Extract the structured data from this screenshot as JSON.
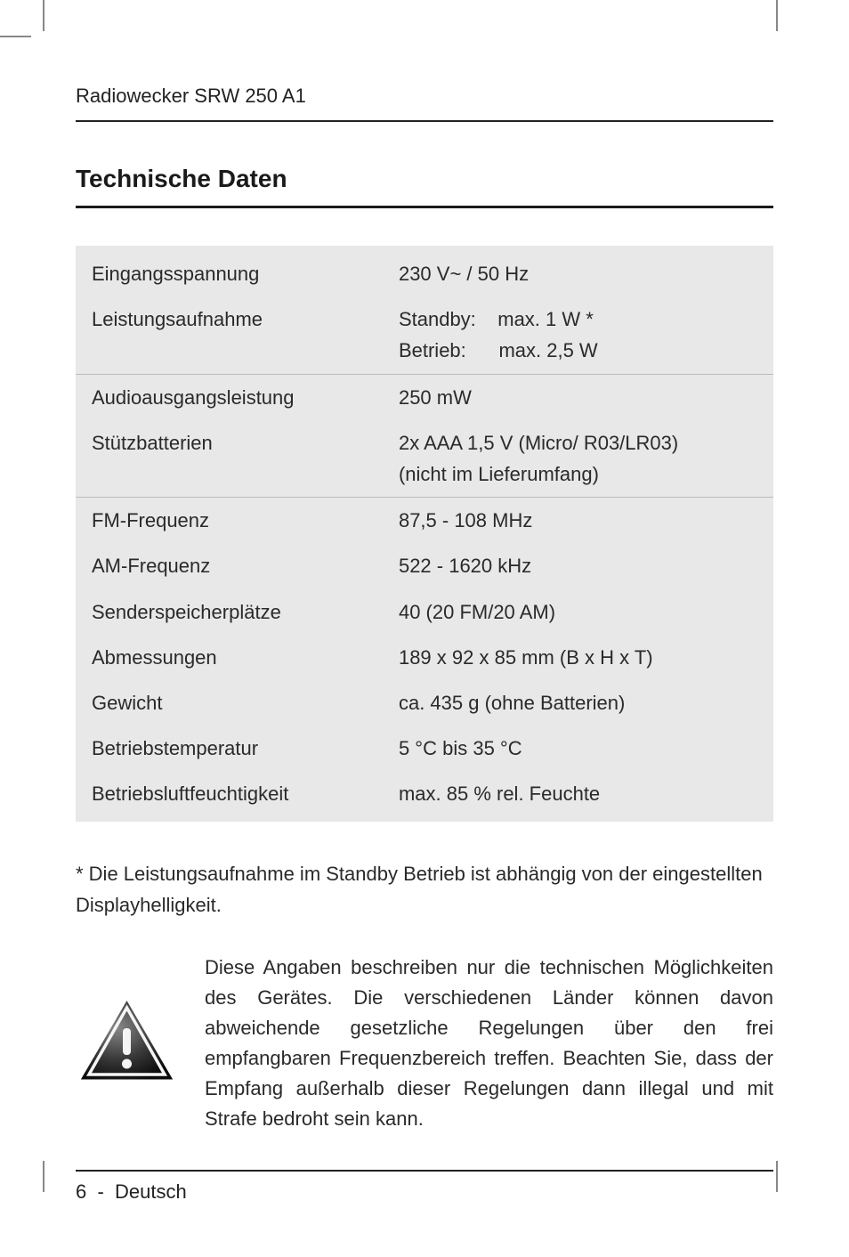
{
  "header": {
    "product_name": "Radiowecker SRW 250 A1"
  },
  "section": {
    "title": "Technische Daten"
  },
  "specs": {
    "rows": [
      {
        "label": "Eingangsspannung",
        "value": "230 V~ / 50 Hz",
        "divider": false
      },
      {
        "label": "Leistungsaufnahme",
        "value_line1": "Standby:    max. 1 W *",
        "value_line2": "Betrieb:      max. 2,5 W",
        "divider": true,
        "multiline": true
      },
      {
        "label": "Audioausgangsleistung",
        "value": "250 mW",
        "divider": false
      },
      {
        "label": "Stützbatterien",
        "value_line1": "2x AAA 1,5 V (Micro/ R03/LR03)",
        "value_line2": "(nicht im Lieferumfang)",
        "divider": true,
        "multiline": true
      },
      {
        "label": "FM-Frequenz",
        "value": "87,5 - 108 MHz",
        "divider": false
      },
      {
        "label": "AM-Frequenz",
        "value": "522 - 1620 kHz",
        "divider": false
      },
      {
        "label": "Senderspeicherplätze",
        "value": "40 (20 FM/20 AM)",
        "divider": false
      },
      {
        "label": "Abmessungen",
        "value": "189 x 92 x 85 mm (B x H x T)",
        "divider": false
      },
      {
        "label": "Gewicht",
        "value": "ca. 435 g (ohne Batterien)",
        "divider": false
      },
      {
        "label": "Betriebstemperatur",
        "value": "5 °C bis 35 °C",
        "divider": false
      },
      {
        "label": "Betriebsluftfeuchtigkeit",
        "value": "max. 85 % rel. Feuchte",
        "divider": false
      }
    ]
  },
  "footnote": "* Die Leistungsaufnahme im Standby Betrieb ist abhängig von der eingestellten Displayhelligkeit.",
  "info_text": "Diese Angaben beschreiben nur die technischen Möglichkeiten des Gerätes. Die verschiedenen Länder können davon abweichende gesetzliche Regelungen über den frei empfangbaren Frequenzbereich treffen. Beachten Sie, dass der Empfang außerhalb dieser Regelungen dann illegal und mit Strafe bedroht sein kann.",
  "footer": {
    "page_number": "6",
    "sep": "-",
    "language": "Deutsch"
  },
  "colors": {
    "text": "#2a2a2a",
    "rule": "#222222",
    "table_bg": "#e8e8e8",
    "table_divider": "#bbbbbb",
    "background": "#ffffff"
  },
  "typography": {
    "body_fontsize": 22,
    "section_title_fontsize": 28,
    "header_fontsize": 22,
    "font_family": "Arial"
  }
}
